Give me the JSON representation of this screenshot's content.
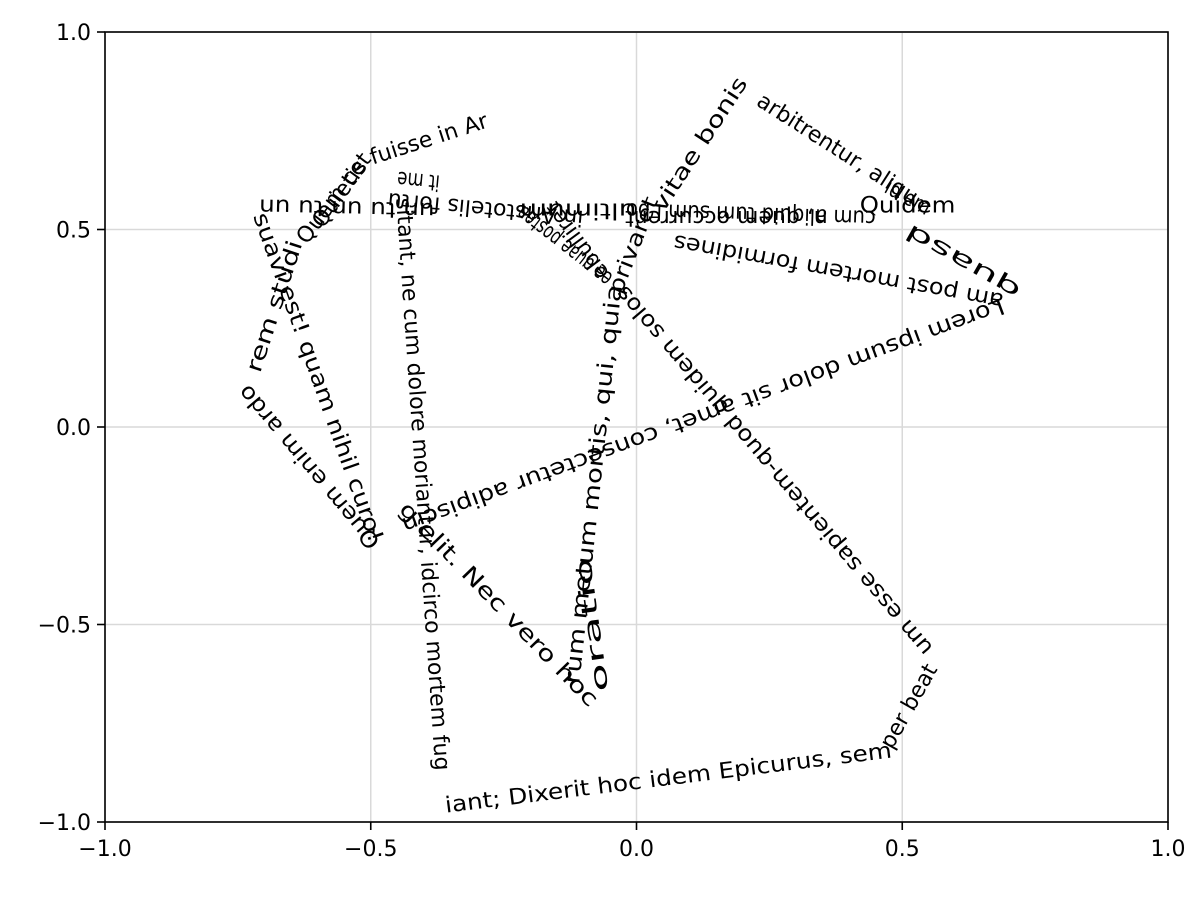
{
  "chart_data": {
    "type": "text-path",
    "title": "",
    "xlabel": "",
    "ylabel": "",
    "xlim": [
      -1.0,
      1.0
    ],
    "ylim": [
      -1.0,
      1.0
    ],
    "grid": true,
    "legend": "none",
    "x_ticks": [
      {
        "value": -1.0,
        "label": "−1.0"
      },
      {
        "value": -0.5,
        "label": "−0.5"
      },
      {
        "value": 0.0,
        "label": "0.0"
      },
      {
        "value": 0.5,
        "label": "0.5"
      },
      {
        "value": 1.0,
        "label": "1.0"
      }
    ],
    "y_ticks": [
      {
        "value": -1.0,
        "label": "−1.0"
      },
      {
        "value": -0.5,
        "label": "−0.5"
      },
      {
        "value": 0.0,
        "label": "0.0"
      },
      {
        "value": 0.5,
        "label": "0.5"
      },
      {
        "value": 1.0,
        "label": "1.0"
      }
    ],
    "segments": [
      {
        "text": "Lorem ipsum dolor sit amet, consectetur adipiscin",
        "from": [
          0.69,
          0.31
        ],
        "to": [
          -0.44,
          -0.25
        ]
      },
      {
        "text": "g elit. Nec vero hoc",
        "from": [
          -0.44,
          -0.2
        ],
        "to": [
          -0.08,
          -0.7
        ]
      },
      {
        "text": "oratio",
        "from": [
          -0.065,
          -0.67
        ],
        "to": [
          -0.1,
          -0.33
        ]
      },
      {
        "text": "rum metum mortis, qui, quia",
        "from": [
          -0.12,
          -0.65
        ],
        "to": [
          -0.04,
          0.36
        ]
      },
      {
        "text": "privaret",
        "from": [
          -0.04,
          0.34
        ],
        "to": [
          0.03,
          0.58
        ]
      },
      {
        "text": "vitae bonis",
        "from": [
          0.04,
          0.55
        ],
        "to": [
          0.2,
          0.88
        ]
      },
      {
        "text": "arbitrentur, aliqu",
        "from": [
          0.23,
          0.83
        ],
        "to": [
          0.52,
          0.58
        ]
      },
      {
        "text": "id em",
        "from": [
          0.47,
          0.61
        ],
        "to": [
          0.55,
          0.55
        ]
      },
      {
        "text": "Quidem",
        "from": [
          0.42,
          0.56
        ],
        "to": [
          0.6,
          0.56
        ]
      },
      {
        "text": "quasd",
        "from": [
          0.72,
          0.34
        ],
        "to": [
          0.51,
          0.5
        ]
      },
      {
        "text": "am post mortem formidines",
        "from": [
          0.69,
          0.32
        ],
        "to": [
          0.07,
          0.47
        ]
      },
      {
        "text": "cum aliquid tum sum i bo",
        "from": [
          0.45,
          0.53
        ],
        "to": [
          -0.02,
          0.55
        ]
      },
      {
        "text": "n, quem occurrent",
        "from": [
          0.36,
          0.53
        ],
        "to": [
          -0.03,
          0.53
        ]
      },
      {
        "text": "ultimum",
        "from": [
          0.0,
          0.55
        ],
        "to": [
          -0.22,
          0.55
        ]
      },
      {
        "text": "ea quae postea",
        "from": [
          -0.05,
          0.37
        ],
        "to": [
          -0.22,
          0.55
        ]
      },
      {
        "text": "in Aristotelis fortu",
        "from": [
          -0.1,
          0.53
        ],
        "to": [
          -0.5,
          0.58
        ]
      },
      {
        "text": "un tu un tu un",
        "from": [
          -0.38,
          0.55
        ],
        "to": [
          -0.71,
          0.56
        ]
      },
      {
        "text": "fuisse in Ar",
        "from": [
          -0.5,
          0.68
        ],
        "to": [
          -0.27,
          0.78
        ]
      },
      {
        "text": "Quietis",
        "from": [
          -0.6,
          0.51
        ],
        "to": [
          -0.52,
          0.66
        ]
      },
      {
        "text": "Quem cet",
        "from": [
          -0.63,
          0.47
        ],
        "to": [
          -0.5,
          0.7
        ]
      },
      {
        "text": "suavi est! quam nihil curo!",
        "from": [
          -0.71,
          0.54
        ],
        "to": [
          -0.49,
          -0.29
        ]
      },
      {
        "text": "Quem enim ardo",
        "from": [
          -0.49,
          -0.3
        ],
        "to": [
          -0.74,
          0.1
        ]
      },
      {
        "text": "rem studi",
        "from": [
          -0.72,
          0.14
        ],
        "to": [
          -0.64,
          0.47
        ]
      },
      {
        "text": "sitant, ne cum dolore moriantur, idcirco mortem fug",
        "from": [
          -0.44,
          0.58
        ],
        "to": [
          -0.36,
          -0.99
        ]
      },
      {
        "text": "iant; Dixerit hoc idem Epicurus, sem",
        "from": [
          -0.36,
          -0.96
        ],
        "to": [
          0.48,
          -0.82
        ]
      },
      {
        "text": "per beat",
        "from": [
          0.47,
          -0.81
        ],
        "to": [
          0.55,
          -0.62
        ]
      },
      {
        "text": "um esse sapientem-quod quidem solos",
        "from": [
          0.55,
          -0.57
        ],
        "to": [
          -0.03,
          0.35
        ]
      },
      {
        "text": "ebulliret",
        "from": [
          -0.06,
          0.38
        ],
        "to": [
          -0.17,
          0.58
        ]
      },
      {
        "text": "it me",
        "from": [
          -0.37,
          0.62
        ],
        "to": [
          -0.45,
          0.63
        ]
      }
    ]
  }
}
